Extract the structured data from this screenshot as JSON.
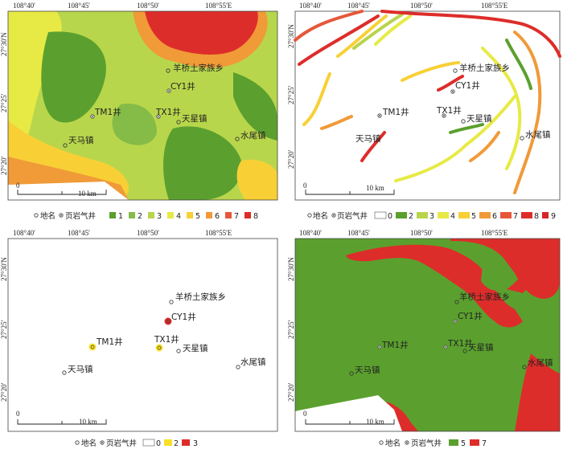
{
  "panels": [
    {
      "id": "a",
      "top_ticks": [
        "108°40'",
        "108°45'",
        "108°50'",
        "108°55'E"
      ],
      "left_ticks": [
        "27°30'N",
        "27°25'",
        "27°20'"
      ],
      "places": {
        "yangqiao": "羊桥土家族乡",
        "cy1": "CY1井",
        "tm1": "TM1井",
        "tx1": "TX1井",
        "tianxing": "天星镇",
        "shuiwei": "水尾镇",
        "tianma": "天马镇"
      },
      "scale": {
        "zero": "0",
        "ten": "10 km"
      },
      "legend": {
        "place": "地名",
        "well": "页岩气井",
        "classes": [
          "1",
          "2",
          "3",
          "4",
          "5",
          "6",
          "7",
          "8"
        ]
      }
    },
    {
      "id": "b",
      "top_ticks": [
        "108°40'",
        "108°45'",
        "108°50'",
        "108°55'E"
      ],
      "left_ticks": [
        "27°30'N",
        "27°25'",
        "27°20'"
      ],
      "places": {
        "yangqiao": "羊桥土家族乡",
        "cy1": "CY1井",
        "tm1": "TM1井",
        "tx1": "TX1井",
        "tianxing": "天星镇",
        "shuiwei": "水尾镇",
        "tianma": "天马镇"
      },
      "scale": {
        "zero": "0",
        "ten": "10 km"
      },
      "legend": {
        "place": "地名",
        "well": "页岩气井",
        "classes": [
          "0",
          "2",
          "3",
          "4",
          "5",
          "6",
          "7",
          "8",
          "9"
        ]
      }
    },
    {
      "id": "c",
      "top_ticks": [
        "108°40'",
        "108°45'",
        "108°50'",
        "108°55'E"
      ],
      "left_ticks": [
        "27°30'N",
        "27°25'",
        "27°20'"
      ],
      "places": {
        "yangqiao": "羊桥土家族乡",
        "cy1": "CY1井",
        "tm1": "TM1井",
        "tx1": "TX1井",
        "tianxing": "天星镇",
        "shuiwei": "水尾镇",
        "tianma": "天马镇"
      },
      "scale": {
        "zero": "0",
        "ten": "10 km"
      },
      "legend": {
        "place": "地名",
        "well": "页岩气井",
        "classes": [
          "0",
          "2",
          "3"
        ]
      }
    },
    {
      "id": "d",
      "top_ticks": [
        "108°40'",
        "108°45'",
        "108°50'",
        "108°55'E"
      ],
      "left_ticks": [
        "27°30'N",
        "27°25'",
        "27°20'"
      ],
      "places": {
        "yangqiao": "羊桥土家族乡",
        "cy1": "CY1井",
        "tm1": "TM1井",
        "tx1": "TX1井",
        "tianxing": "天星镇",
        "shuiwei": "水尾镇",
        "tianma": "天马镇"
      },
      "scale": {
        "zero": "0",
        "ten": "10 km"
      },
      "legend": {
        "place": "地名",
        "well": "页岩气井",
        "classes": [
          "5",
          "7"
        ]
      }
    }
  ],
  "colors": {
    "c0": "#ffffff",
    "c1": "#5ba02e",
    "c2": "#85bb47",
    "c3": "#b7d44c",
    "c4": "#e7ea45",
    "c5": "#f8d035",
    "c6": "#f09a38",
    "c7": "#e6573a",
    "c8": "#dd2d2a",
    "c9": "#d72626"
  }
}
